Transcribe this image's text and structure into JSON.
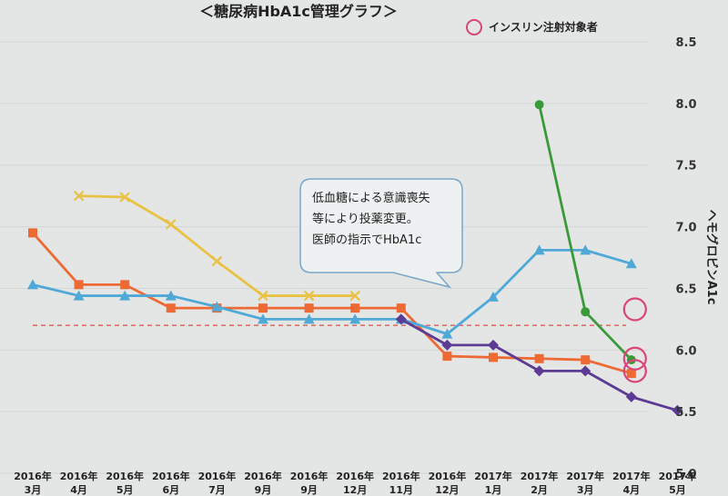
{
  "chart_data": {
    "type": "line",
    "title": "＜糖尿病HbA1c管理グラフ＞",
    "ylabel": "ヘモグロビンA1c",
    "ylim": [
      5.0,
      8.5
    ],
    "yticks": [
      "5.0",
      "5.5",
      "6.0",
      "6.5",
      "7.0",
      "7.5",
      "8.0",
      "8.5"
    ],
    "categories": [
      [
        "2016年",
        "3月"
      ],
      [
        "2016年",
        "4月"
      ],
      [
        "2016年",
        "5月"
      ],
      [
        "2016年",
        "6月"
      ],
      [
        "2016年",
        "7月"
      ],
      [
        "2016年",
        "9月"
      ],
      [
        "2016年",
        "9月"
      ],
      [
        "2016年",
        "12月"
      ],
      [
        "2016年",
        "11月"
      ],
      [
        "2016年",
        "12月"
      ],
      [
        "2017年",
        "1月"
      ],
      [
        "2017年",
        "2月"
      ],
      [
        "2017年",
        "3月"
      ],
      [
        "2017年",
        "4月"
      ],
      [
        "2017年",
        "5月"
      ]
    ],
    "reference_line": {
      "value": 6.2,
      "color": "#e0706a"
    },
    "legend": {
      "label": "インスリン注射対象者",
      "position": "top-right",
      "color": "#d8457a"
    },
    "series": [
      {
        "marker": "square",
        "color": "#ee6a35",
        "values": [
          6.95,
          6.53,
          6.53,
          6.34,
          6.34,
          6.34,
          6.34,
          6.34,
          6.34,
          5.95,
          5.94,
          5.93,
          5.92,
          5.81,
          null
        ]
      },
      {
        "marker": "triangle",
        "color": "#4fa8d6",
        "values": [
          6.53,
          6.44,
          6.44,
          6.44,
          6.35,
          6.25,
          6.25,
          6.25,
          6.25,
          6.13,
          6.43,
          6.81,
          6.81,
          6.7,
          null
        ]
      },
      {
        "marker": "x",
        "color": "#e9c243",
        "values": [
          null,
          7.25,
          7.24,
          7.02,
          6.72,
          6.44,
          6.44,
          6.44,
          null,
          null,
          null,
          null,
          null,
          null,
          null
        ]
      },
      {
        "marker": "diamond",
        "color": "#5b3b93",
        "values": [
          null,
          null,
          null,
          null,
          null,
          null,
          null,
          null,
          6.25,
          6.04,
          6.04,
          5.83,
          5.83,
          5.62,
          5.51
        ]
      },
      {
        "marker": "circle",
        "color": "#3a9a3a",
        "values": [
          null,
          null,
          null,
          null,
          null,
          null,
          null,
          null,
          null,
          null,
          null,
          7.99,
          6.31,
          5.92,
          null
        ]
      }
    ],
    "insulin_markers": [
      {
        "category_index": 13,
        "value": 6.33
      },
      {
        "category_index": 13,
        "value": 5.93
      },
      {
        "category_index": 13,
        "value": 5.83
      }
    ],
    "annotation": {
      "lines": [
        "低血糖による意識喪失",
        "等により投薬変更。",
        "医師の指示でHbA1c"
      ]
    }
  }
}
